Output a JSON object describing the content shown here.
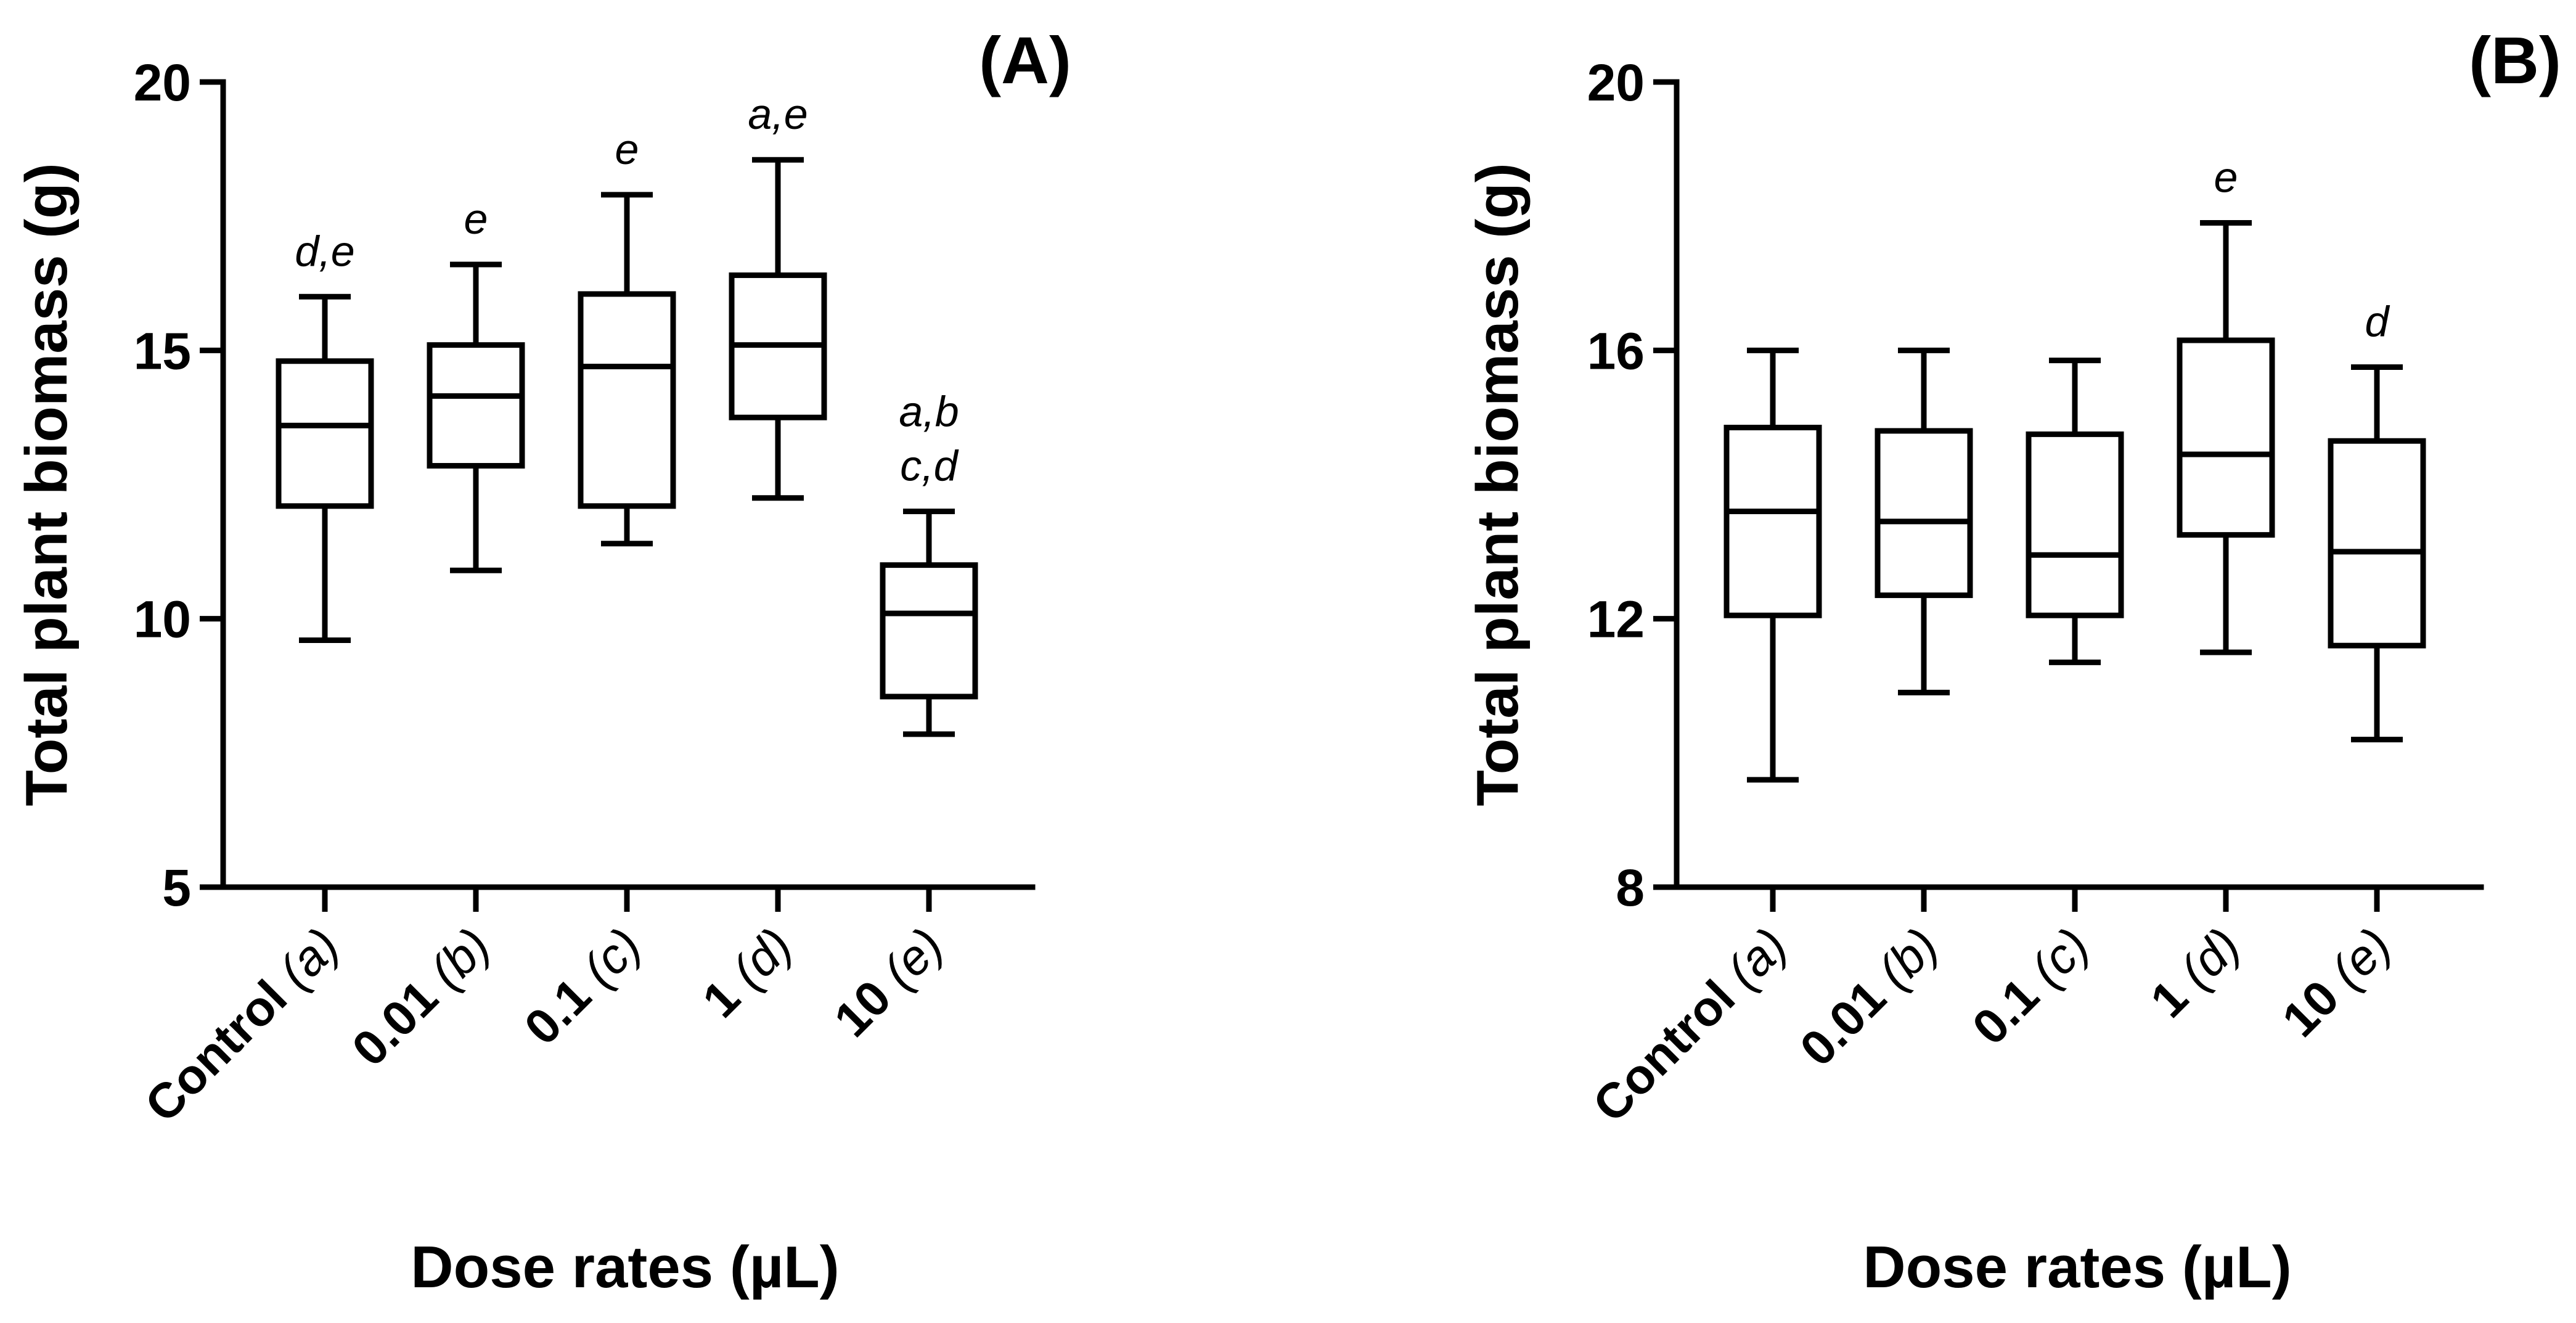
{
  "chart_data": [
    {
      "type": "box",
      "panel_label": "(A)",
      "ylabel": "Total plant biomass (g)",
      "xlabel": "Dose rates (µL)",
      "ylim": [
        5,
        20
      ],
      "yticks": [
        5,
        10,
        15,
        20
      ],
      "categories": [
        {
          "name": "Control",
          "code": "(a)"
        },
        {
          "name": "0.01",
          "code": "(b)"
        },
        {
          "name": "0.1",
          "code": "(c)"
        },
        {
          "name": "1",
          "code": "(d)"
        },
        {
          "name": "10",
          "code": "(e)"
        }
      ],
      "boxes": [
        {
          "min": 9.6,
          "q1": 12.1,
          "median": 13.6,
          "q3": 14.8,
          "max": 16.0
        },
        {
          "min": 10.9,
          "q1": 12.85,
          "median": 14.15,
          "q3": 15.1,
          "max": 16.6
        },
        {
          "min": 11.4,
          "q1": 12.1,
          "median": 14.7,
          "q3": 16.05,
          "max": 17.9
        },
        {
          "min": 12.25,
          "q1": 13.75,
          "median": 15.1,
          "q3": 16.4,
          "max": 18.55
        },
        {
          "min": 7.85,
          "q1": 8.55,
          "median": 10.1,
          "q3": 11.0,
          "max": 12.0
        }
      ],
      "significance": [
        [
          "d,e"
        ],
        [
          "e"
        ],
        [
          "e"
        ],
        [
          "a,e"
        ],
        [
          "a,b",
          "c,d"
        ]
      ]
    },
    {
      "type": "box",
      "panel_label": "(B)",
      "ylabel": "Total plant biomass (g)",
      "xlabel": "Dose rates (µL)",
      "ylim": [
        8,
        20
      ],
      "yticks": [
        8,
        12,
        16,
        20
      ],
      "categories": [
        {
          "name": "Control",
          "code": "(a)"
        },
        {
          "name": "0.01",
          "code": "(b)"
        },
        {
          "name": "0.1",
          "code": "(c)"
        },
        {
          "name": "1",
          "code": "(d)"
        },
        {
          "name": "10",
          "code": "(e)"
        }
      ],
      "boxes": [
        {
          "min": 9.6,
          "q1": 12.05,
          "median": 13.6,
          "q3": 14.85,
          "max": 16.0
        },
        {
          "min": 10.9,
          "q1": 12.35,
          "median": 13.45,
          "q3": 14.8,
          "max": 16.0
        },
        {
          "min": 11.35,
          "q1": 12.05,
          "median": 12.95,
          "q3": 14.75,
          "max": 15.85
        },
        {
          "min": 11.5,
          "q1": 13.25,
          "median": 14.45,
          "q3": 16.15,
          "max": 17.9
        },
        {
          "min": 10.2,
          "q1": 11.6,
          "median": 13.0,
          "q3": 14.65,
          "max": 15.75
        }
      ],
      "significance": [
        [],
        [],
        [],
        [
          "e"
        ],
        [
          "d"
        ]
      ]
    }
  ]
}
